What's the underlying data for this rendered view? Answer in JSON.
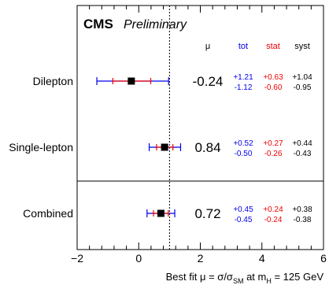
{
  "chart_data": {
    "type": "forest",
    "experiment": "CMS",
    "status": "Preliminary",
    "xlabel": "Best fit μ = σ/σ_SM at m_H = 125 GeV",
    "xlabel_parts": {
      "before": "Best fit μ = σ/σ",
      "sub1": "SM",
      "middle": " at m",
      "sub2": "H",
      "after": " = 125 GeV"
    },
    "xlim": [
      -2,
      6
    ],
    "xticks": [
      -2,
      0,
      2,
      4,
      6
    ],
    "reference_line": 1,
    "column_headers": {
      "mu": "μ",
      "tot": "tot",
      "stat": "stat",
      "syst": "syst"
    },
    "colors": {
      "tot": "#0000ee",
      "stat": "#ee0000",
      "syst": "#000000",
      "marker": "#000000",
      "reference": "#000000"
    },
    "categories": [
      {
        "label": "Dilepton",
        "mu": -0.24,
        "mu_text": "-0.24",
        "tot": {
          "up": 1.21,
          "down": 1.12,
          "up_text": "+1.21",
          "down_text": "-1.12"
        },
        "stat": {
          "up": 0.63,
          "down": 0.6,
          "up_text": "+0.63",
          "down_text": "-0.60"
        },
        "syst": {
          "up": 1.04,
          "down": 0.95,
          "up_text": "+1.04",
          "down_text": "-0.95"
        }
      },
      {
        "label": "Single-lepton",
        "mu": 0.84,
        "mu_text": "0.84",
        "tot": {
          "up": 0.52,
          "down": 0.5,
          "up_text": "+0.52",
          "down_text": "-0.50"
        },
        "stat": {
          "up": 0.27,
          "down": 0.26,
          "up_text": "+0.27",
          "down_text": "-0.26"
        },
        "syst": {
          "up": 0.44,
          "down": 0.43,
          "up_text": "+0.44",
          "down_text": "-0.43"
        }
      },
      {
        "label": "Combined",
        "mu": 0.72,
        "mu_text": "0.72",
        "tot": {
          "up": 0.45,
          "down": 0.45,
          "up_text": "+0.45",
          "down_text": "-0.45"
        },
        "stat": {
          "up": 0.24,
          "down": 0.24,
          "up_text": "+0.24",
          "down_text": "-0.24"
        },
        "syst": {
          "up": 0.38,
          "down": 0.38,
          "up_text": "+0.38",
          "down_text": "-0.38"
        }
      }
    ]
  }
}
